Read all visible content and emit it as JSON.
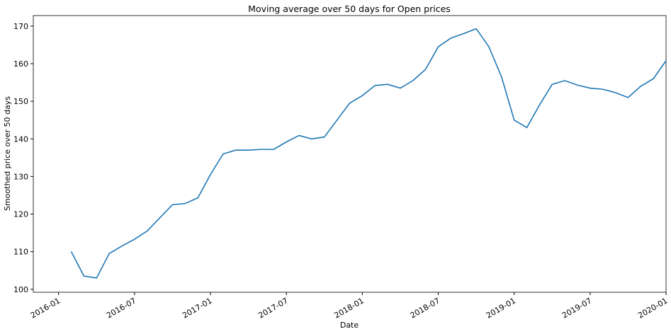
{
  "chart_data": {
    "type": "line",
    "title": "Moving average over 50 days for Open prices",
    "x_label": "Date",
    "y_label": "Smoothed price over 50 days",
    "x": [
      "2016-02",
      "2016-03",
      "2016-04",
      "2016-05",
      "2016-06",
      "2016-07",
      "2016-08",
      "2016-09",
      "2016-10",
      "2016-11",
      "2016-12",
      "2017-01",
      "2017-02",
      "2017-03",
      "2017-04",
      "2017-05",
      "2017-06",
      "2017-07",
      "2017-08",
      "2017-09",
      "2017-10",
      "2017-11",
      "2017-12",
      "2018-01",
      "2018-02",
      "2018-03",
      "2018-04",
      "2018-05",
      "2018-06",
      "2018-07",
      "2018-08",
      "2018-09",
      "2018-10",
      "2018-11",
      "2018-12",
      "2019-01",
      "2019-02",
      "2019-03",
      "2019-04",
      "2019-05",
      "2019-06",
      "2019-07",
      "2019-08",
      "2019-09",
      "2019-10",
      "2019-11",
      "2019-12",
      "2020-01"
    ],
    "series": [
      {
        "name": "Open",
        "color": "#1f77b4",
        "values": [
          110,
          103.5,
          103,
          109.5,
          111.5,
          113.3,
          115.5,
          119,
          122.5,
          122.8,
          124.3,
          130.5,
          136,
          137,
          137,
          137.2,
          137.2,
          139.2,
          140.9,
          140,
          140.5,
          145,
          149.5,
          151.5,
          154.2,
          154.5,
          153.5,
          155.5,
          158.5,
          164.5,
          166.8,
          168,
          169.3,
          164.5,
          156.5,
          145,
          143,
          149,
          154.5,
          155.5,
          154.3,
          153.5,
          153.2,
          152.3,
          151,
          154,
          156,
          160.8
        ]
      }
    ],
    "xlim": [
      "2015-11",
      "2020-01"
    ],
    "xticks": [
      "2016-01",
      "2016-07",
      "2017-01",
      "2017-07",
      "2018-01",
      "2018-07",
      "2019-01",
      "2019-07",
      "2020-01"
    ],
    "ylim": [
      99.2,
      172.8
    ],
    "yticks": [
      100,
      110,
      120,
      130,
      140,
      150,
      160,
      170
    ],
    "grid": false
  }
}
